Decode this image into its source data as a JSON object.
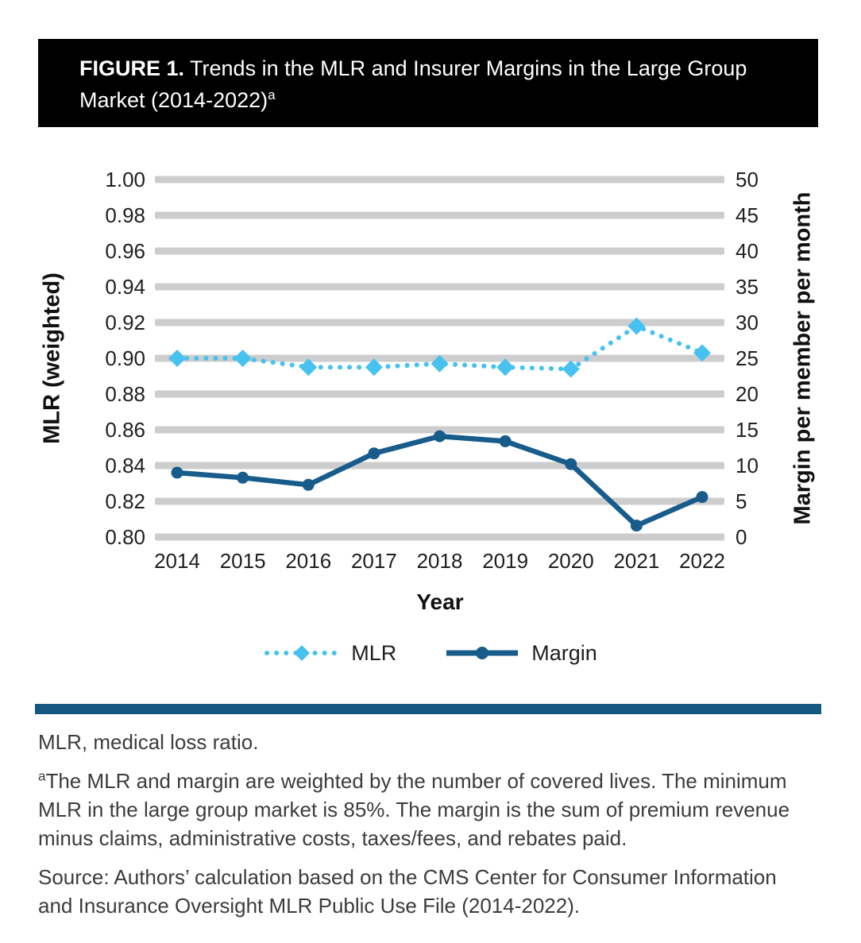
{
  "header": {
    "figure_label": "FIGURE 1.",
    "title": "Trends in the MLR and Insurer Margins in the Large Group Market (2014-2022)",
    "title_superscript": "a"
  },
  "chart_data": {
    "type": "line",
    "x": [
      2014,
      2015,
      2016,
      2017,
      2018,
      2019,
      2020,
      2021,
      2022
    ],
    "xlabel": "Year",
    "left_axis": {
      "label": "MLR (weighted)",
      "min": 0.8,
      "max": 1.0,
      "tick_step": 0.02
    },
    "right_axis": {
      "label": "Margin per member per month",
      "min": 0,
      "max": 50,
      "tick_step": 5
    },
    "grid": "horizontal-bars",
    "legend_position": "bottom",
    "series": [
      {
        "name": "MLR",
        "axis": "left",
        "style": "dotted",
        "marker": "diamond",
        "color": "#47C2F0",
        "values": [
          0.9,
          0.9,
          0.895,
          0.895,
          0.897,
          0.895,
          0.894,
          0.918,
          0.903
        ]
      },
      {
        "name": "Margin",
        "axis": "right",
        "style": "solid",
        "marker": "circle",
        "color": "#185C8C",
        "values": [
          9.0,
          8.3,
          7.3,
          11.7,
          14.1,
          13.4,
          10.2,
          1.6,
          5.6
        ]
      }
    ]
  },
  "footnotes": {
    "abbreviation": "MLR, medical loss ratio.",
    "note_marker": "a",
    "note_text": "The MLR and margin are weighted by the number of covered lives. The minimum MLR in the large group market is 85%. The margin is the sum of premium revenue minus claims, administrative costs, taxes/fees, and rebates paid.",
    "source": "Source: Authors’ calculation based on the CMS Center for Consumer Information and Insurance Oversight MLR Public Use File (2014-2022)."
  },
  "colors": {
    "header_bg": "#000000",
    "header_text": "#FFFFFF",
    "gridline": "#CDCDCD",
    "tick_text": "#1F1F1F",
    "divider": "#14587F",
    "footnote_text": "#3C3C3C"
  }
}
